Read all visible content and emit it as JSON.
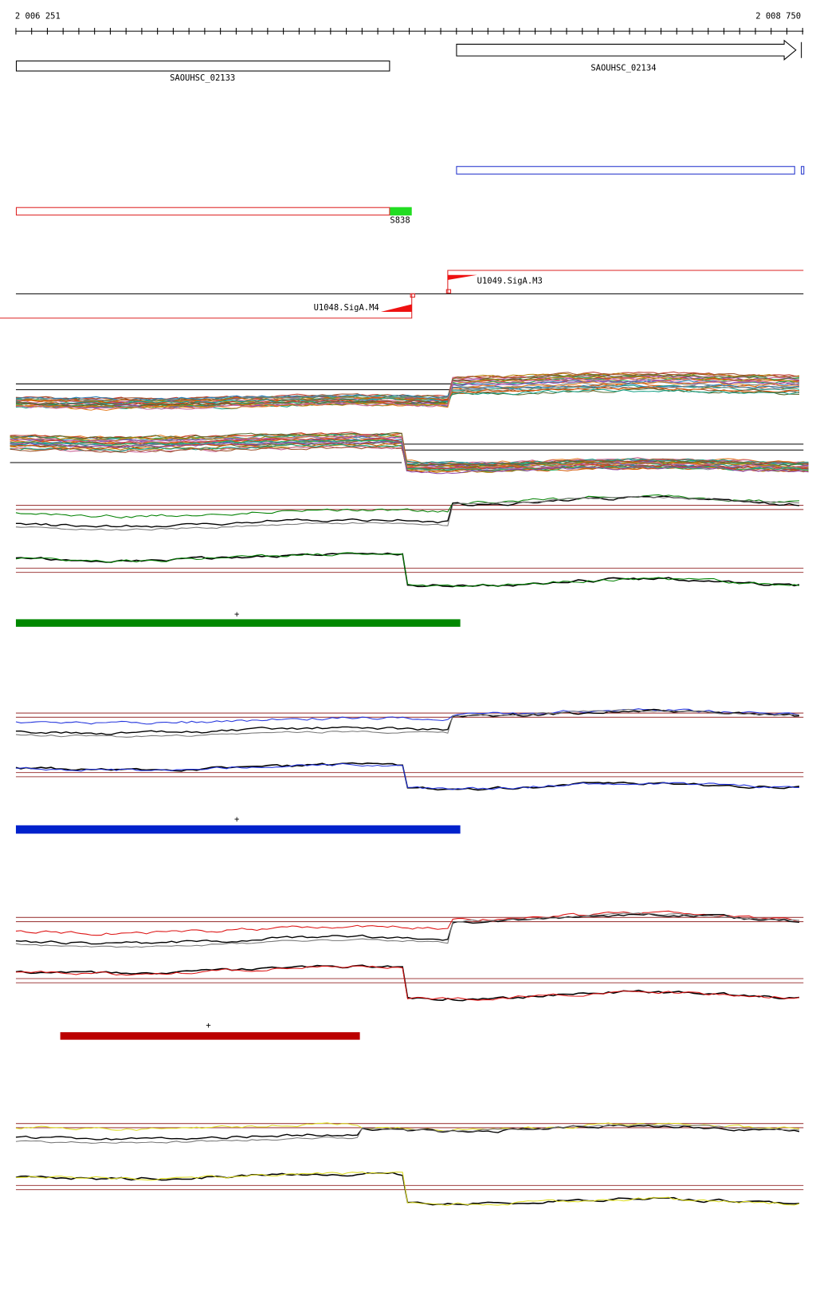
{
  "ruler": {
    "start": "2 006 251",
    "end": "2 008 750"
  },
  "genes": [
    {
      "label": "SAOUHSC_02133"
    },
    {
      "label": "SAOUHSC_02134"
    }
  ],
  "features": [
    {
      "label": "S838"
    }
  ],
  "promoters": [
    {
      "label": "U1049.SigA.M3"
    },
    {
      "label": "U1048.SigA.M4"
    }
  ],
  "tracks": [
    {
      "marker": "+"
    },
    {
      "marker": "+"
    },
    {
      "marker": "+"
    }
  ]
}
